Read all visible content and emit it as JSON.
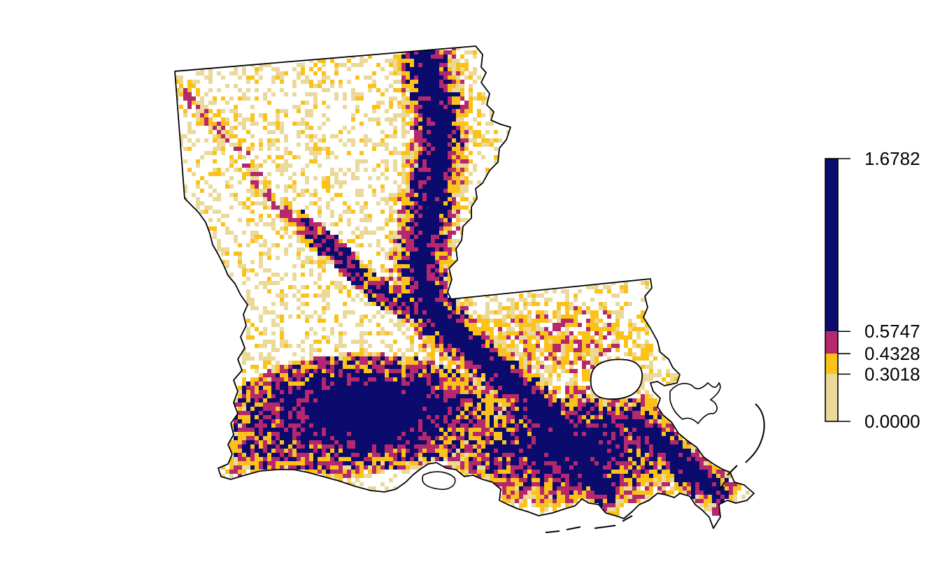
{
  "legend": {
    "breaks": [
      0.0,
      0.3018,
      0.4328,
      0.5747,
      1.6782
    ],
    "tick_labels": [
      "0.0000",
      "0.3018",
      "0.4328",
      "0.5747",
      "1.6782"
    ],
    "bin_colors": [
      "#ebd999",
      "#fbc219",
      "#b5286e",
      "#0b0b6d"
    ]
  },
  "map": {
    "region": "Louisiana",
    "outline_color": "#000000",
    "background_color": "#ffffff"
  }
}
